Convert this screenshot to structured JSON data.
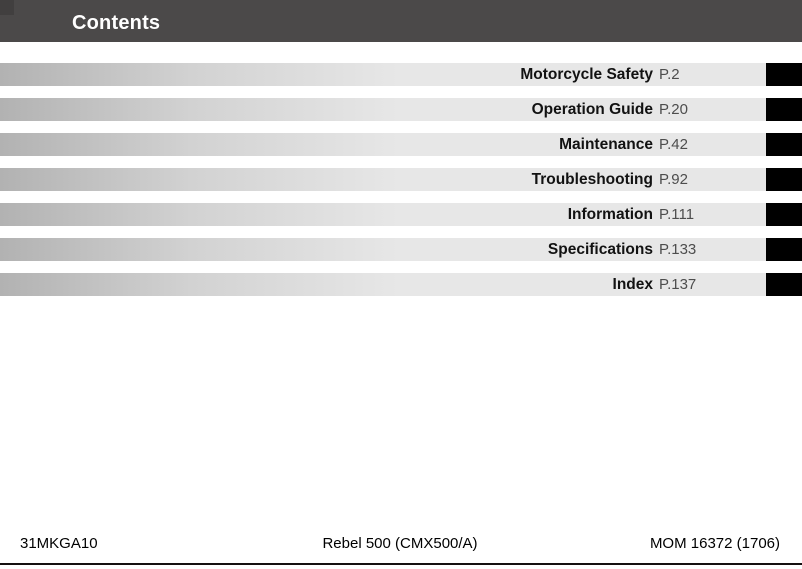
{
  "header": {
    "title": "Contents"
  },
  "toc": {
    "items": [
      {
        "label": "Motorcycle Safety",
        "page": "P.2"
      },
      {
        "label": "Operation Guide",
        "page": "P.20"
      },
      {
        "label": "Maintenance",
        "page": "P.42"
      },
      {
        "label": "Troubleshooting",
        "page": "P.92"
      },
      {
        "label": "Information",
        "page": "P.111"
      },
      {
        "label": "Specifications",
        "page": "P.133"
      },
      {
        "label": "Index",
        "page": "P.137"
      }
    ]
  },
  "footer": {
    "left_code": "31MKGA10",
    "model": "Rebel 500 (CMX500/A)",
    "right_code": "MOM 16372 (1706)"
  },
  "colors": {
    "header_bar": "#4b4949",
    "bar_gradient_start": "#b2b2b2",
    "bar_gradient_end": "#e7e7e7",
    "chapter_tab": "#000000",
    "page_ref_text": "#4d4d4d"
  }
}
